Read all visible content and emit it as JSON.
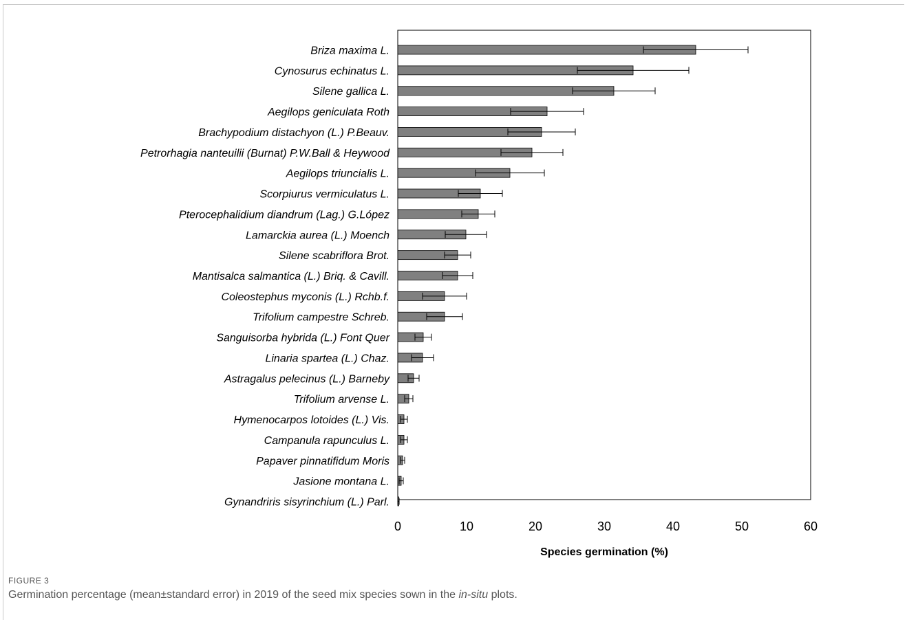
{
  "figure": {
    "label": "FIGURE 3",
    "caption_before": "Germination percentage (mean±standard error) in 2019 of the seed mix species sown in the ",
    "caption_italic": "in-situ",
    "caption_after": " plots."
  },
  "chart_data": {
    "type": "bar",
    "orientation": "horizontal",
    "xlabel": "Species germination (%)",
    "ylabel": "",
    "xlim": [
      0,
      60
    ],
    "xticks": [
      0,
      10,
      20,
      30,
      40,
      50,
      60
    ],
    "grid": false,
    "bar_color": "#808080",
    "categories": [
      "Briza maxima L.",
      "Cynosurus echinatus L.",
      "Silene gallica L.",
      "Aegilops geniculata Roth",
      "Brachypodium distachyon (L.) P.Beauv.",
      "Petrorhagia nanteuilii (Burnat) P.W.Ball & Heywood",
      "Aegilops triuncialis L.",
      "Scorpiurus vermiculatus L.",
      "Pterocephalidium diandrum (Lag.) G.López",
      "Lamarckia aurea (L.) Moench",
      "Silene scabriflora Brot.",
      "Mantisalca salmantica (L.) Briq. & Cavill.",
      "Coleostephus myconis (L.) Rchb.f.",
      "Trifolium campestre Schreb.",
      "Sanguisorba hybrida (L.) Font Quer",
      "Linaria spartea (L.) Chaz.",
      "Astragalus pelecinus (L.) Barneby",
      "Trifolium arvense L.",
      "Hymenocarpos lotoides (L.) Vis.",
      "Campanula rapunculus L.",
      "Papaver pinnatifidum Moris",
      "Jasione montana L.",
      "Gynandriris sisyrinchium (L.) Parl."
    ],
    "values": [
      43.3,
      34.2,
      31.4,
      21.7,
      20.9,
      19.5,
      16.3,
      12.0,
      11.7,
      9.9,
      8.7,
      8.7,
      6.8,
      6.8,
      3.7,
      3.6,
      2.3,
      1.6,
      0.9,
      0.9,
      0.7,
      0.5,
      0.1
    ],
    "errors": [
      7.6,
      8.1,
      6.0,
      5.3,
      4.9,
      4.5,
      5.0,
      3.2,
      2.4,
      3.0,
      1.9,
      2.2,
      3.2,
      2.6,
      1.2,
      1.6,
      0.8,
      0.6,
      0.5,
      0.5,
      0.3,
      0.3,
      0.1
    ]
  }
}
